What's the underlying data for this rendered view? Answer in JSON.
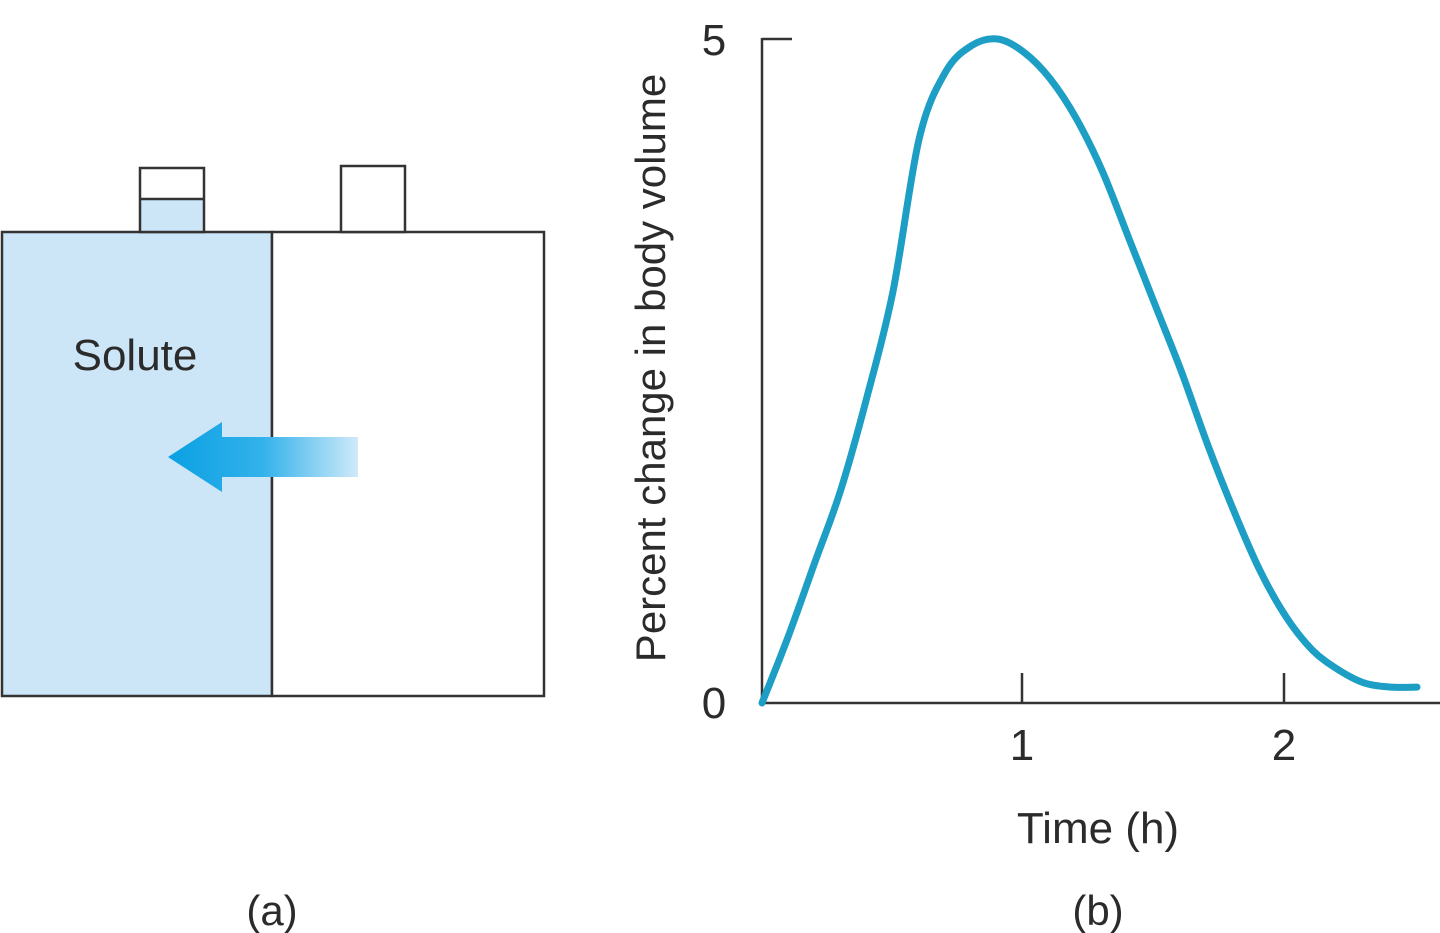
{
  "panel_a": {
    "compartment_label": "Solute",
    "caption": "(a)",
    "left_fill_color": "#cce6f7",
    "arrow_color": "#11a3e2",
    "outline_color": "#333333"
  },
  "panel_b": {
    "caption": "(b)",
    "chart_data": {
      "type": "line",
      "title": "",
      "xlabel": "Time (h)",
      "ylabel": "Percent change in body volume",
      "xlim": [
        0,
        2.5
      ],
      "ylim": [
        0,
        5
      ],
      "xticks": [
        1,
        2
      ],
      "xtick_labels": [
        "1",
        "2"
      ],
      "yticks": [
        0,
        5
      ],
      "ytick_labels": [
        "0",
        "5"
      ],
      "grid": false,
      "line_color": "#1d9ec4",
      "series": [
        {
          "x": [
            0.0,
            0.1,
            0.2,
            0.3,
            0.4,
            0.5,
            0.6,
            0.7,
            0.8,
            0.9,
            1.0,
            1.1,
            1.2,
            1.3,
            1.4,
            1.5,
            1.6,
            1.7,
            1.8,
            1.9,
            2.0,
            2.1,
            2.2,
            2.3,
            2.4,
            2.5
          ],
          "y": [
            0.0,
            0.5,
            1.05,
            1.6,
            2.3,
            3.1,
            4.25,
            4.75,
            4.95,
            5.0,
            4.9,
            4.7,
            4.4,
            4.0,
            3.5,
            3.0,
            2.5,
            1.95,
            1.45,
            1.0,
            0.65,
            0.4,
            0.25,
            0.15,
            0.12,
            0.12
          ]
        }
      ]
    }
  }
}
